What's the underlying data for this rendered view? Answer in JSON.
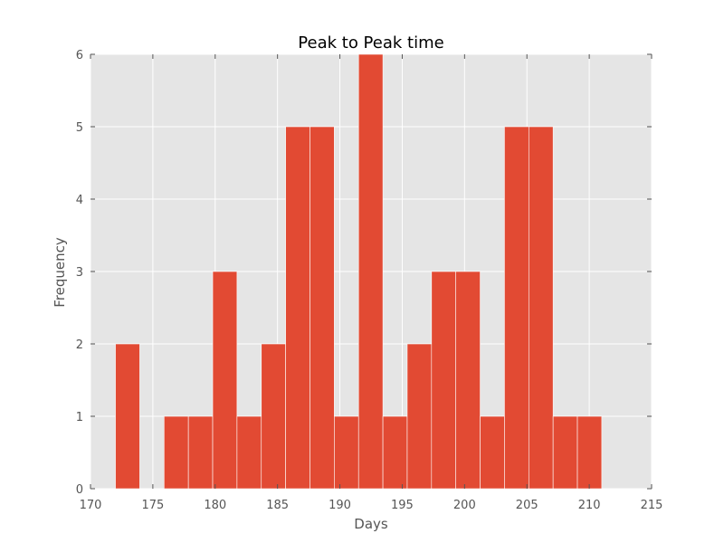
{
  "chart_data": {
    "type": "bar",
    "title": "Peak to Peak time",
    "xlabel": "Days",
    "ylabel": "Frequency",
    "xlim": [
      170,
      215
    ],
    "ylim": [
      0,
      6
    ],
    "xticks": [
      170,
      175,
      180,
      185,
      190,
      195,
      200,
      205,
      210,
      215
    ],
    "yticks": [
      0,
      1,
      2,
      3,
      4,
      5,
      6
    ],
    "grid": true,
    "bins": [
      {
        "start": 172.0,
        "end": 173.95,
        "value": 2
      },
      {
        "start": 173.95,
        "end": 175.9,
        "value": 0
      },
      {
        "start": 175.9,
        "end": 177.85,
        "value": 1
      },
      {
        "start": 177.85,
        "end": 179.8,
        "value": 1
      },
      {
        "start": 179.8,
        "end": 181.75,
        "value": 3
      },
      {
        "start": 181.75,
        "end": 183.7,
        "value": 1
      },
      {
        "start": 183.7,
        "end": 185.65,
        "value": 2
      },
      {
        "start": 185.65,
        "end": 187.6,
        "value": 5
      },
      {
        "start": 187.6,
        "end": 189.55,
        "value": 5
      },
      {
        "start": 189.55,
        "end": 191.5,
        "value": 1
      },
      {
        "start": 191.5,
        "end": 193.45,
        "value": 6
      },
      {
        "start": 193.45,
        "end": 195.4,
        "value": 1
      },
      {
        "start": 195.4,
        "end": 197.35,
        "value": 2
      },
      {
        "start": 197.35,
        "end": 199.3,
        "value": 3
      },
      {
        "start": 199.3,
        "end": 201.25,
        "value": 3
      },
      {
        "start": 201.25,
        "end": 203.2,
        "value": 1
      },
      {
        "start": 203.2,
        "end": 205.15,
        "value": 5
      },
      {
        "start": 205.15,
        "end": 207.1,
        "value": 5
      },
      {
        "start": 207.1,
        "end": 209.05,
        "value": 1
      },
      {
        "start": 209.05,
        "end": 211.0,
        "value": 1
      }
    ],
    "colors": {
      "bar": "#E24A33",
      "background": "#E5E5E5",
      "grid": "#FFFFFF",
      "bar_edge": "#FFFFFF"
    }
  }
}
